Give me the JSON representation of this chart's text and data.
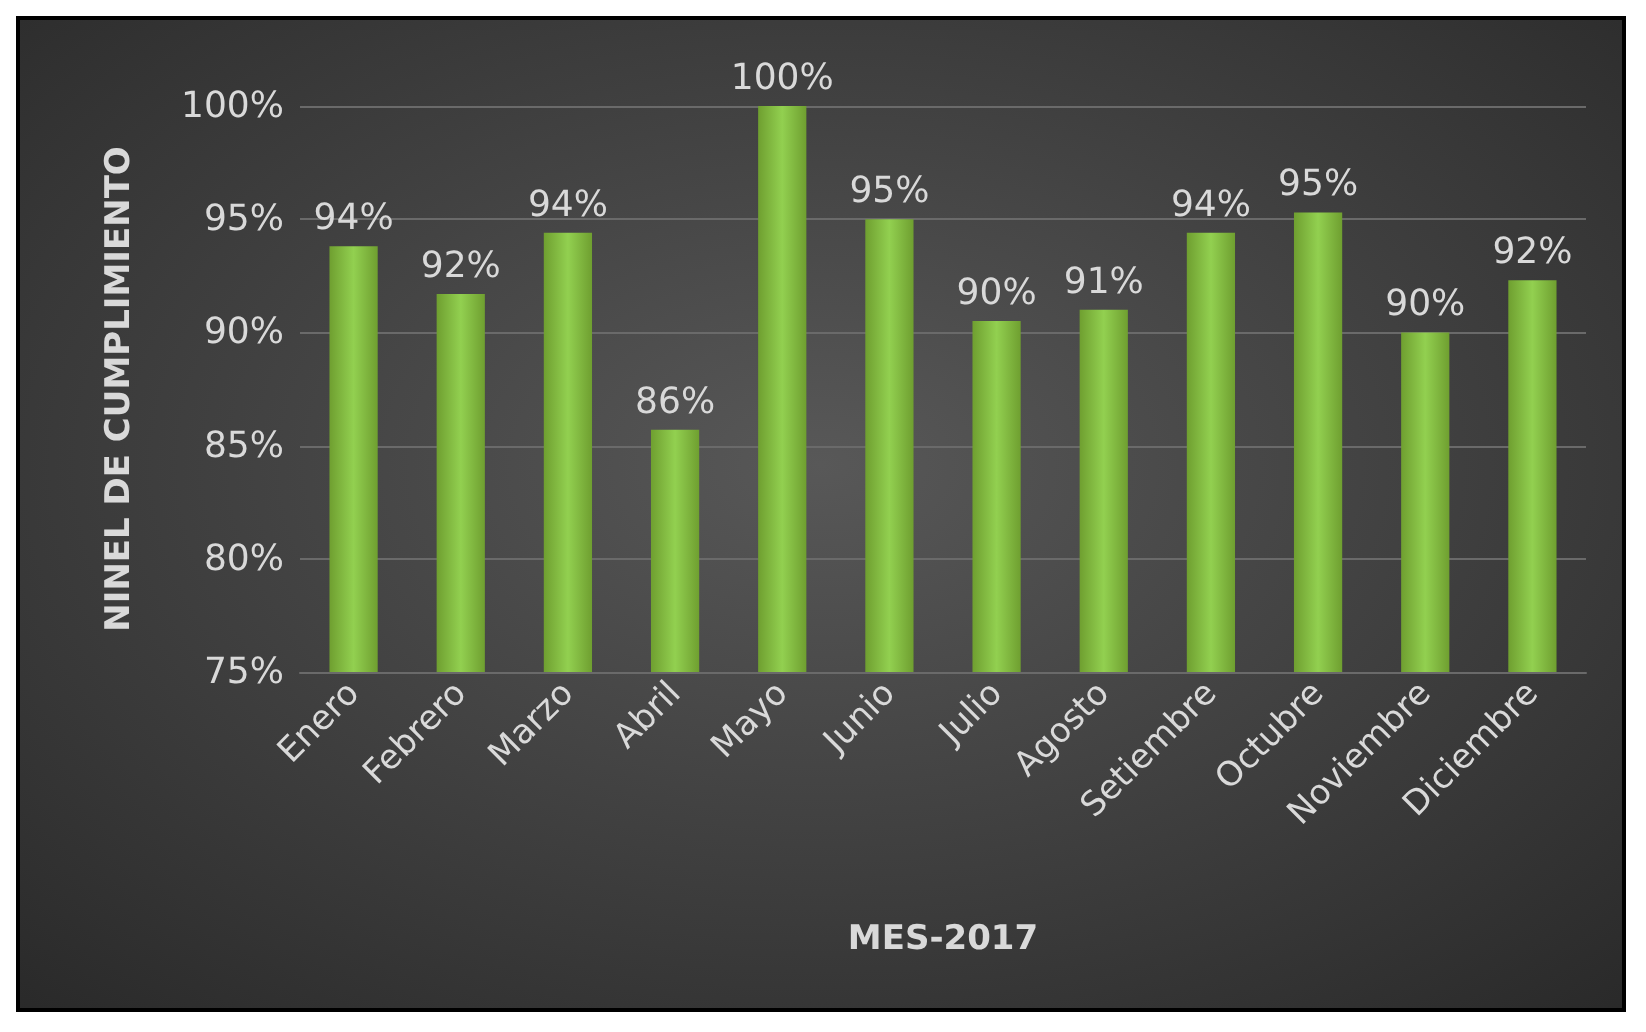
{
  "chart_data": {
    "type": "bar",
    "xlabel": "MES-2017",
    "ylabel": "NINEL DE CUMPLIMIENTO",
    "categories": [
      "Enero",
      "Febrero",
      "Marzo",
      "Abril",
      "Mayo",
      "Junio",
      "Julio",
      "Agosto",
      "Setiembre",
      "Octubre",
      "Noviembre",
      "Diciembre"
    ],
    "values": [
      93.8,
      91.7,
      94.4,
      85.7,
      100,
      95.0,
      90.5,
      91.0,
      94.4,
      95.3,
      90.0,
      92.3
    ],
    "value_labels": [
      "94%",
      "92%",
      "94%",
      "86%",
      "100%",
      "95%",
      "90%",
      "91%",
      "94%",
      "95%",
      "90%",
      "92%"
    ],
    "color": "#92d050",
    "ylim": [
      75,
      100
    ],
    "yticks": [
      {
        "value": 75,
        "label": "75%"
      },
      {
        "value": 80,
        "label": "80%"
      },
      {
        "value": 85,
        "label": "85%"
      },
      {
        "value": 90,
        "label": "90%"
      },
      {
        "value": 95,
        "label": "95%"
      },
      {
        "value": 100,
        "label": "100%"
      }
    ],
    "grid": "y"
  }
}
